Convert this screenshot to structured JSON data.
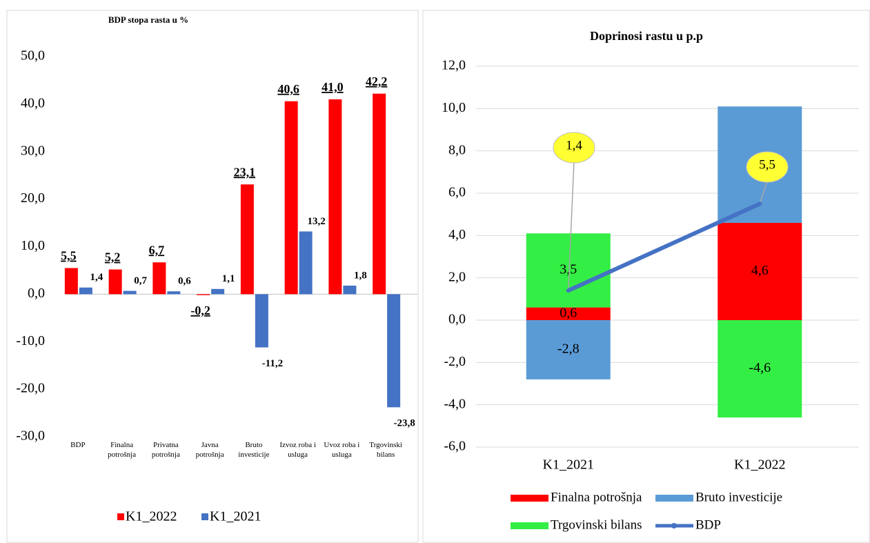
{
  "chart_data": [
    {
      "type": "bar",
      "title": "BDP stopa rasta u %",
      "categories": [
        "BDP",
        "Finalna potrošnja",
        "Privatna potrošnja",
        "Javna potrošnja",
        "Bruto investicije",
        "Izvoz roba i usluga",
        "Uvoz roba i usluga",
        "Trgovinski bilans"
      ],
      "series": [
        {
          "name": "K1_2022",
          "color": "#ff0000",
          "values": [
            5.5,
            5.2,
            6.7,
            -0.2,
            23.1,
            40.6,
            41.0,
            42.2
          ],
          "value_labels": [
            "5,5",
            "5,2",
            "6,7",
            "-0,2",
            "23,1",
            "40,6",
            "41,0",
            "42,2"
          ]
        },
        {
          "name": "K1_2021",
          "color": "#4472c4",
          "values": [
            1.4,
            0.7,
            0.6,
            1.1,
            -11.2,
            13.2,
            1.8,
            -23.8
          ],
          "value_labels": [
            "1,4",
            "0,7",
            "0,6",
            "1,1",
            "-11,2",
            "13,2",
            "1,8",
            "-23,8"
          ]
        }
      ],
      "ylim": [
        -30,
        50
      ],
      "yticks": [
        {
          "value": -30,
          "label": "-30,0"
        },
        {
          "value": -20,
          "label": "-20,0"
        },
        {
          "value": -10,
          "label": "-10,0"
        },
        {
          "value": 0,
          "label": "0,0"
        },
        {
          "value": 10,
          "label": "10,0"
        },
        {
          "value": 20,
          "label": "20,0"
        },
        {
          "value": 30,
          "label": "30,0"
        },
        {
          "value": 40,
          "label": "40,0"
        },
        {
          "value": 50,
          "label": "50,0"
        }
      ],
      "grid": false,
      "legend": "bottom"
    },
    {
      "type": "stacked_bar_line",
      "title": "Doprinosi rastu u p.p",
      "categories": [
        "K1_2021",
        "K1_2022"
      ],
      "series": [
        {
          "name": "Finalna potrošnja",
          "color": "#ff0000",
          "values": [
            0.6,
            4.6
          ],
          "value_labels": [
            "0,6",
            "4,6"
          ]
        },
        {
          "name": "Bruto investicije",
          "color": "#5b9bd5",
          "values": [
            -2.8,
            5.5
          ],
          "value_labels": [
            "-2,8",
            null
          ]
        },
        {
          "name": "Trgovinski bilans",
          "color": "#33ee44",
          "values": [
            3.5,
            -4.6
          ],
          "value_labels": [
            "3,5",
            "-4,6"
          ]
        },
        {
          "name": "BDP",
          "type": "line",
          "color": "#4472c4",
          "values": [
            1.4,
            5.5
          ],
          "value_labels": [
            "1,4",
            "5,5"
          ]
        }
      ],
      "ylim": [
        -6,
        12
      ],
      "yticks": [
        {
          "value": -6,
          "label": "-6,0"
        },
        {
          "value": -4,
          "label": "-4,0"
        },
        {
          "value": -2,
          "label": "-2,0"
        },
        {
          "value": 0,
          "label": "0,0"
        },
        {
          "value": 2,
          "label": "2,0"
        },
        {
          "value": 4,
          "label": "4,0"
        },
        {
          "value": 6,
          "label": "6,0"
        },
        {
          "value": 8,
          "label": "8,0"
        },
        {
          "value": 10,
          "label": "10,0"
        },
        {
          "value": 12,
          "label": "12,0"
        }
      ],
      "grid": true,
      "legend": "bottom"
    }
  ]
}
